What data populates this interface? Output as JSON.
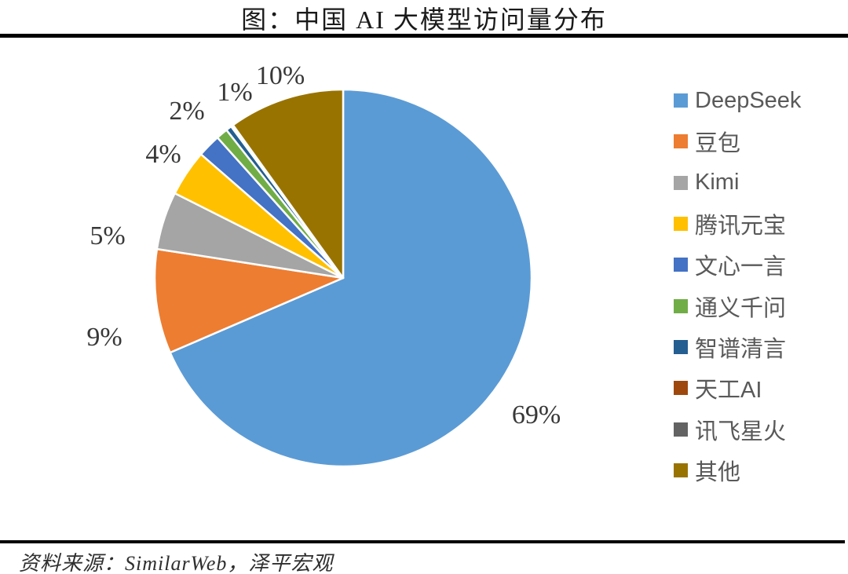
{
  "title": "图：中国 AI 大模型访问量分布",
  "source": "资料来源：SimilarWeb，泽平宏观",
  "chart_data": {
    "type": "pie",
    "title": "图：中国 AI 大模型访问量分布",
    "legend_position": "right",
    "start_angle": "12-o-clock, clockwise",
    "slices": [
      {
        "name": "DeepSeek",
        "value_pct": 69,
        "label": "69%",
        "color": "#5B9BD5"
      },
      {
        "name": "豆包",
        "value_pct": 9,
        "label": "9%",
        "color": "#ED7D31"
      },
      {
        "name": "Kimi",
        "value_pct": 5,
        "label": "5%",
        "color": "#A5A5A5"
      },
      {
        "name": "腾讯元宝",
        "value_pct": 4,
        "label": "4%",
        "color": "#FFC000"
      },
      {
        "name": "文心一言",
        "value_pct": 2,
        "label": "2%",
        "color": "#4472C4"
      },
      {
        "name": "通义千问",
        "value_pct": 1,
        "label": "1%",
        "color": "#70AD47"
      },
      {
        "name": "智谱清言",
        "value_pct": 0.5,
        "label": "",
        "color": "#255E91"
      },
      {
        "name": "天工AI",
        "value_pct": 0.1,
        "label": "",
        "color": "#9E480E"
      },
      {
        "name": "讯飞星火",
        "value_pct": 0.1,
        "label": "",
        "color": "#636363"
      },
      {
        "name": "其他",
        "value_pct": 10,
        "label": "10%",
        "color": "#997300"
      }
    ]
  }
}
